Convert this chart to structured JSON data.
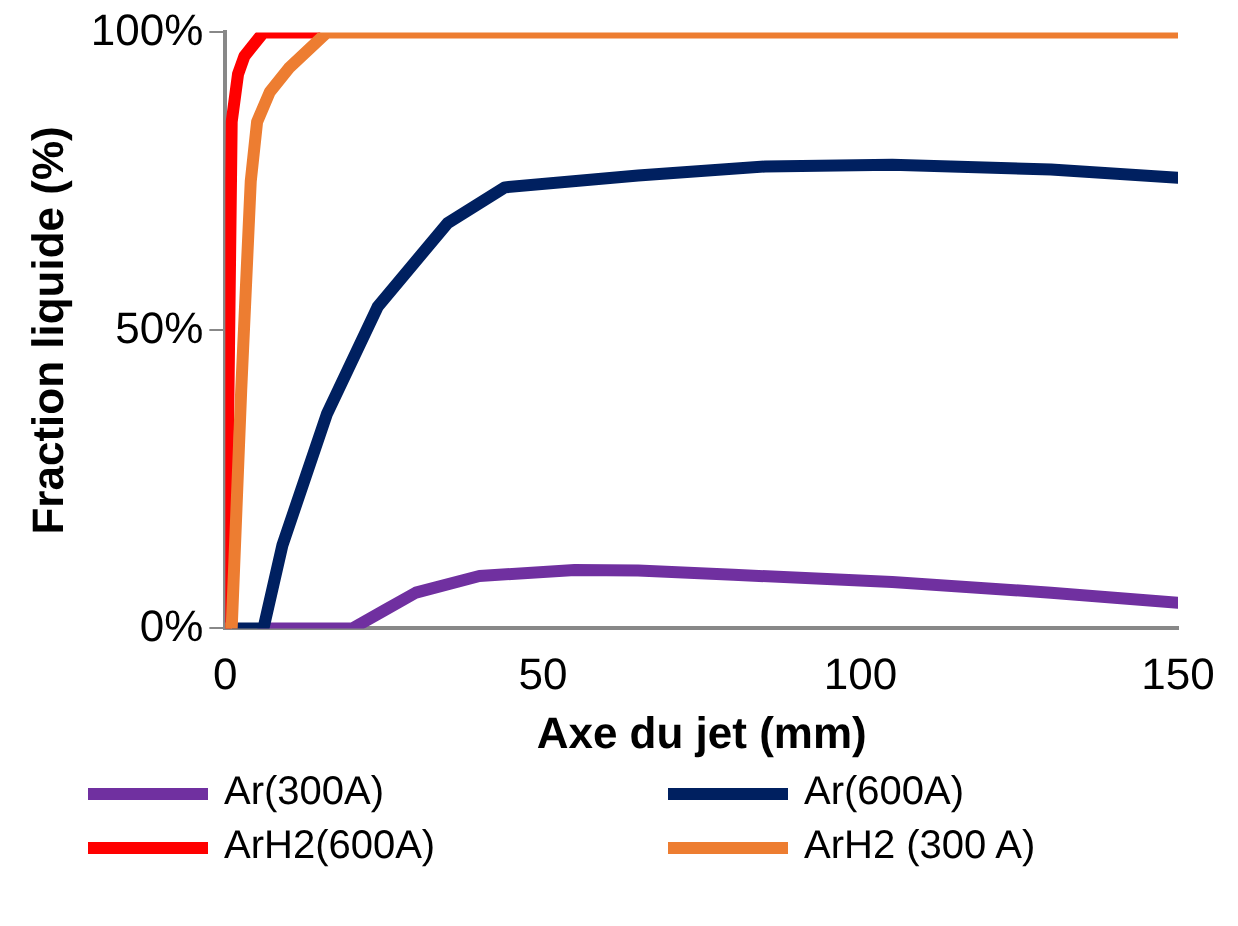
{
  "chart_data": {
    "type": "line",
    "xlabel": "Axe du jet (mm)",
    "ylabel": "Fraction liquide (%)",
    "xlim": [
      0,
      150
    ],
    "xticks": [
      0,
      50,
      100,
      150
    ],
    "ylim": [
      0,
      100
    ],
    "yticks": [
      {
        "value": 0,
        "label": "0%"
      },
      {
        "value": 50,
        "label": "50%"
      },
      {
        "value": 100,
        "label": "100%"
      }
    ],
    "grid": false,
    "legend": "bottom",
    "marker": "none",
    "line_style": "solid",
    "series": [
      {
        "name": "Ar(300A)",
        "color": "#7030a0",
        "x": [
          6,
          20,
          25,
          30,
          40,
          55,
          65,
          80,
          105,
          130,
          150
        ],
        "values": [
          0,
          0,
          3,
          6,
          8.8,
          9.8,
          9.7,
          9,
          7.8,
          6,
          4.3
        ]
      },
      {
        "name": "Ar(600A)",
        "color": "#002060",
        "x": [
          2,
          6,
          9,
          16,
          24,
          35,
          44,
          65,
          85,
          105,
          130,
          150
        ],
        "values": [
          0,
          0,
          14,
          36,
          54,
          68,
          74,
          76,
          77.5,
          77.8,
          77,
          75.6
        ]
      },
      {
        "name": "ArH2(600A)",
        "color": "#ff0000",
        "x": [
          0,
          0.5,
          1,
          2,
          3,
          6,
          14
        ],
        "values": [
          0,
          40,
          85,
          93,
          96,
          100,
          100
        ]
      },
      {
        "name": "ArH2 (300 A)",
        "color": "#ed7d31",
        "x": [
          0,
          1,
          2.5,
          4,
          5,
          7,
          10,
          16,
          150
        ],
        "values": [
          0,
          0,
          40,
          75,
          85,
          90,
          94,
          100,
          100
        ]
      }
    ]
  }
}
